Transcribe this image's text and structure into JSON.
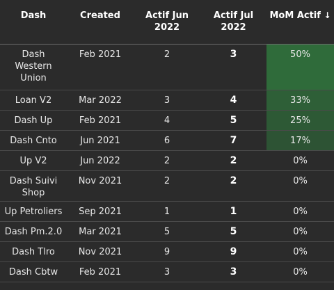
{
  "table": {
    "headers": {
      "dash": "Dash",
      "created": "Created",
      "actif_jun_l1": "Actif Jun",
      "actif_jun_l2": "2022",
      "actif_jul_l1": "Actif Jul",
      "actif_jul_l2": "2022",
      "mom": "MoM Actif",
      "mom_sort_icon": "↓"
    },
    "rows": [
      {
        "dash": "Dash Western Union",
        "created": "Feb 2021",
        "jun": "2",
        "jul": "3",
        "mom": "50%",
        "mom_value": 0.5
      },
      {
        "dash": "Loan V2",
        "created": "Mar 2022",
        "jun": "3",
        "jul": "4",
        "mom": "33%",
        "mom_value": 0.33
      },
      {
        "dash": "Dash Up",
        "created": "Feb 2021",
        "jun": "4",
        "jul": "5",
        "mom": "25%",
        "mom_value": 0.25
      },
      {
        "dash": "Dash Cnto",
        "created": "Jun 2021",
        "jun": "6",
        "jul": "7",
        "mom": "17%",
        "mom_value": 0.17
      },
      {
        "dash": "Up V2",
        "created": "Jun 2022",
        "jun": "2",
        "jul": "2",
        "mom": "0%",
        "mom_value": 0
      },
      {
        "dash": "Dash Suivi Shop",
        "created": "Nov 2021",
        "jun": "2",
        "jul": "2",
        "mom": "0%",
        "mom_value": 0
      },
      {
        "dash": "Up Petroliers",
        "created": "Sep 2021",
        "jun": "1",
        "jul": "1",
        "mom": "0%",
        "mom_value": 0
      },
      {
        "dash": "Dash Pm.2.0",
        "created": "Mar 2021",
        "jun": "5",
        "jul": "5",
        "mom": "0%",
        "mom_value": 0
      },
      {
        "dash": "Dash Tlro",
        "created": "Nov 2021",
        "jun": "9",
        "jul": "9",
        "mom": "0%",
        "mom_value": 0
      },
      {
        "dash": "Dash Cbtw",
        "created": "Feb 2021",
        "jun": "3",
        "jul": "3",
        "mom": "0%",
        "mom_value": 0
      }
    ]
  },
  "colors": {
    "background": "#2b2b2b",
    "positive_fill": "#2f6b3a"
  }
}
